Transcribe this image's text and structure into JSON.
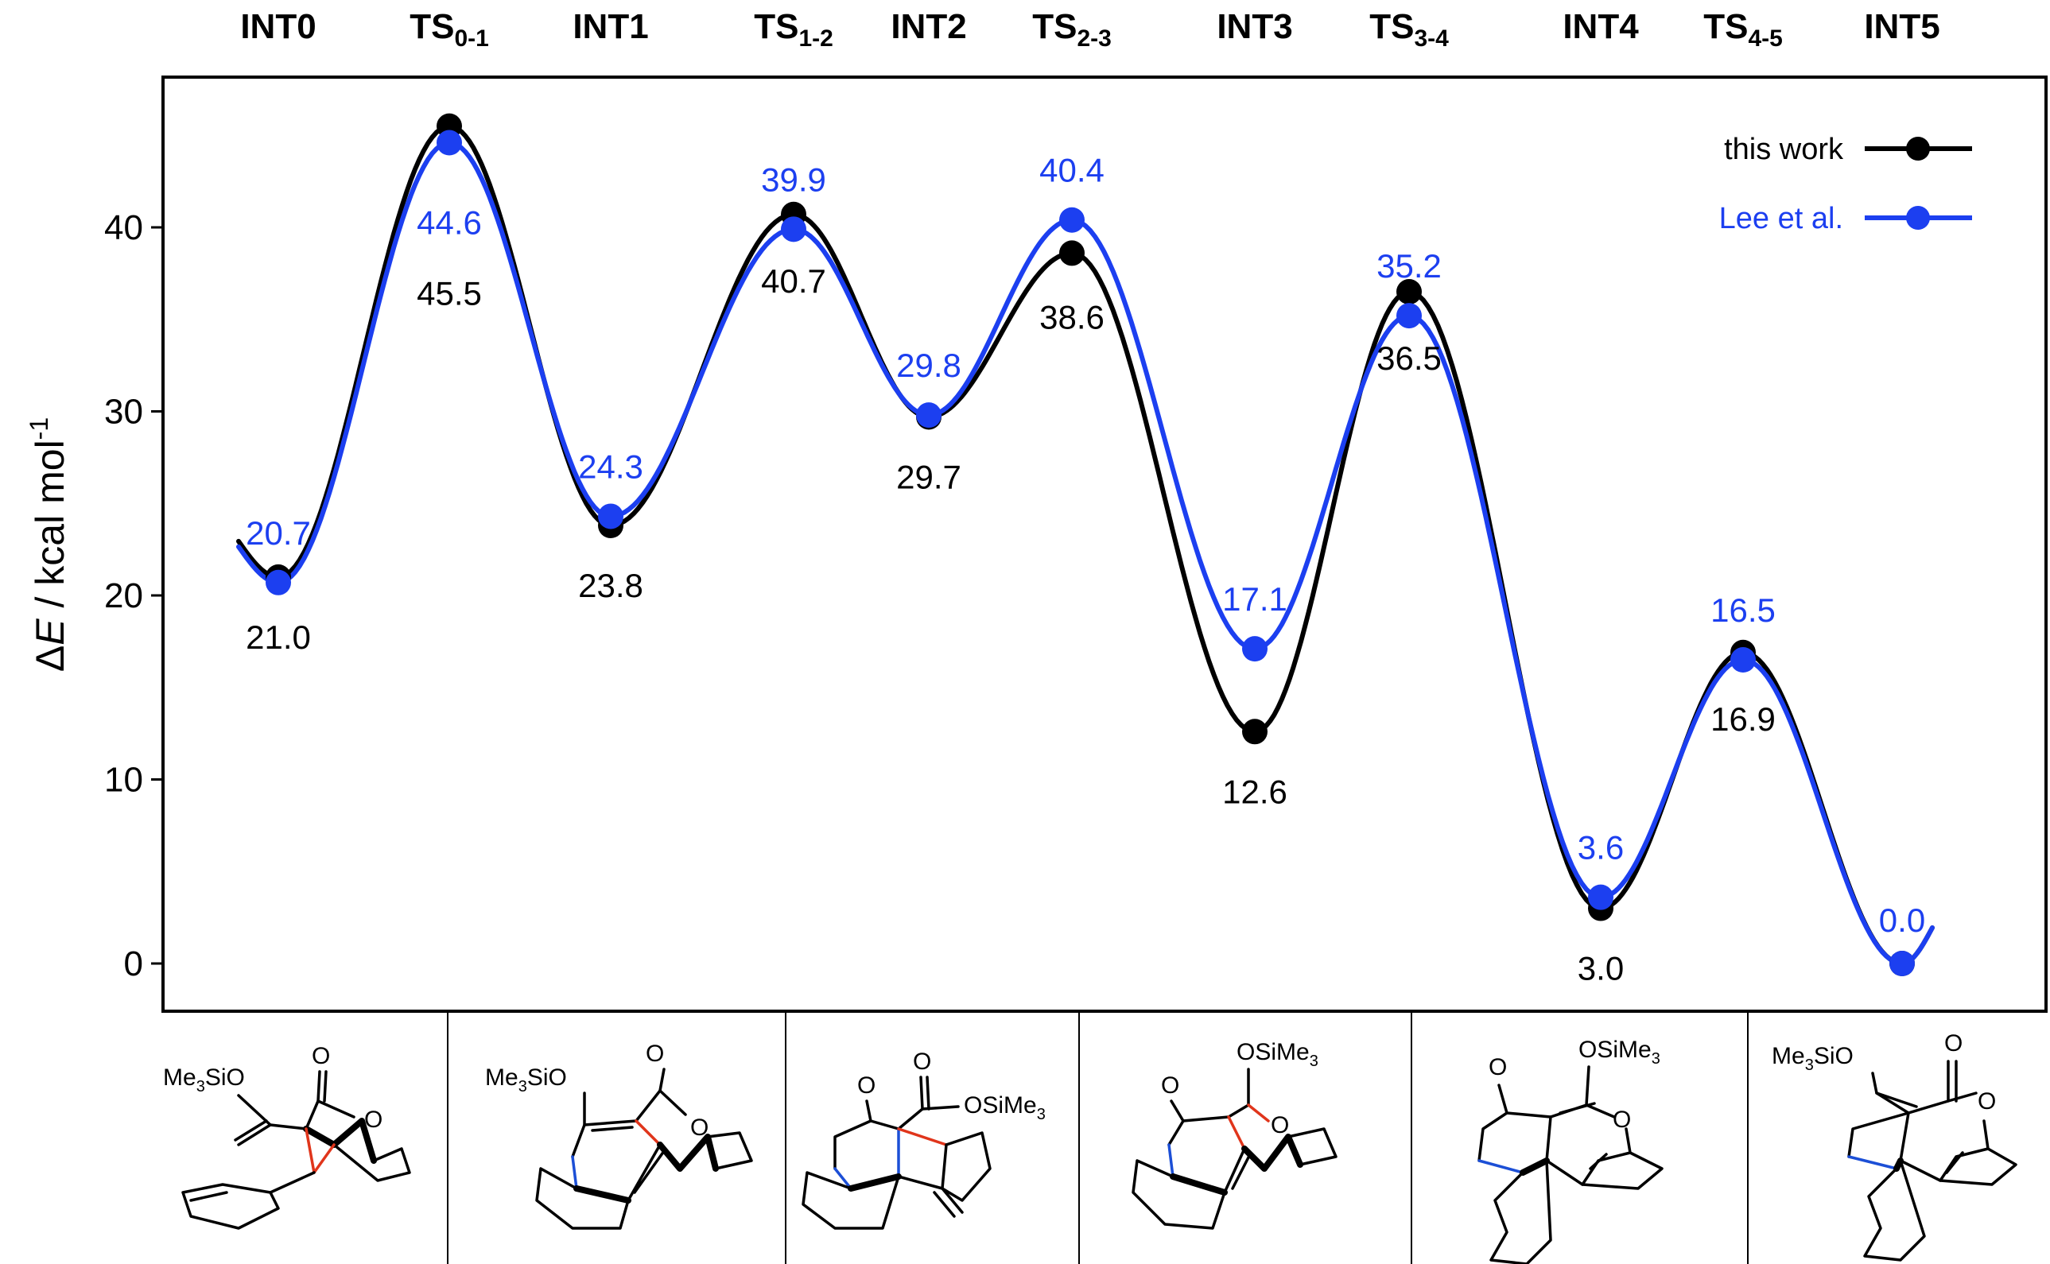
{
  "chart_data": {
    "type": "line",
    "ylabel_parts": {
      "delta": "Δ",
      "var": "E",
      "unit": " / kcal mol",
      "sup": "-1"
    },
    "ylim": [
      -2.5,
      48.5
    ],
    "yticks": [
      "0",
      "10",
      "20",
      "30",
      "40"
    ],
    "grid": false,
    "legend_position": "top-right",
    "categories": [
      {
        "base": "INT0",
        "sub": ""
      },
      {
        "base": "TS",
        "sub": "0-1"
      },
      {
        "base": "INT1",
        "sub": ""
      },
      {
        "base": "TS",
        "sub": "1-2"
      },
      {
        "base": "INT2",
        "sub": ""
      },
      {
        "base": "TS",
        "sub": "2-3"
      },
      {
        "base": "INT3",
        "sub": ""
      },
      {
        "base": "TS",
        "sub": "3-4"
      },
      {
        "base": "INT4",
        "sub": ""
      },
      {
        "base": "TS",
        "sub": "4-5"
      },
      {
        "base": "INT5",
        "sub": ""
      }
    ],
    "series": [
      {
        "name": "this work",
        "color": "#000000",
        "values": [
          21.0,
          45.5,
          23.8,
          40.7,
          29.7,
          38.6,
          12.6,
          36.5,
          3.0,
          16.9,
          0.0
        ],
        "labels": [
          "21.0",
          "45.5",
          "23.8",
          "40.7",
          "29.7",
          "38.6",
          "12.6",
          "36.5",
          "3.0",
          "16.9",
          ""
        ]
      },
      {
        "name": "Lee et al.",
        "color": "#1c3ff0",
        "values": [
          20.7,
          44.6,
          24.3,
          39.9,
          29.8,
          40.4,
          17.1,
          35.2,
          3.6,
          16.5,
          0.0
        ],
        "labels": [
          "20.7",
          "44.6",
          "24.3",
          "39.9",
          "29.8",
          "40.4",
          "17.1",
          "35.2",
          "3.6",
          "16.5",
          "0.0"
        ]
      }
    ]
  },
  "structures": {
    "int0": {
      "silyl": "Me",
      "silyl_sub": "3",
      "silyl_tail": "SiO",
      "carbonyl": "O",
      "ring_o": "O"
    },
    "int1": {
      "silyl": "Me",
      "silyl_sub": "3",
      "silyl_tail": "SiO",
      "carbonyl": "O",
      "ring_o": "O"
    },
    "int2": {
      "ketone": "O",
      "carbonyl": "O",
      "ester": "OSiMe",
      "ester_sub": "3"
    },
    "int3": {
      "ketone": "O",
      "ester": "OSiMe",
      "ester_sub": "3",
      "ring_o": "O"
    },
    "int4": {
      "ketone": "O",
      "ester": "OSiMe",
      "ester_sub": "3",
      "ring_o": "O"
    },
    "int5": {
      "silyl": "Me",
      "silyl_sub": "3",
      "silyl_tail": "SiO",
      "carbonyl": "O",
      "ring_o": "O"
    }
  }
}
